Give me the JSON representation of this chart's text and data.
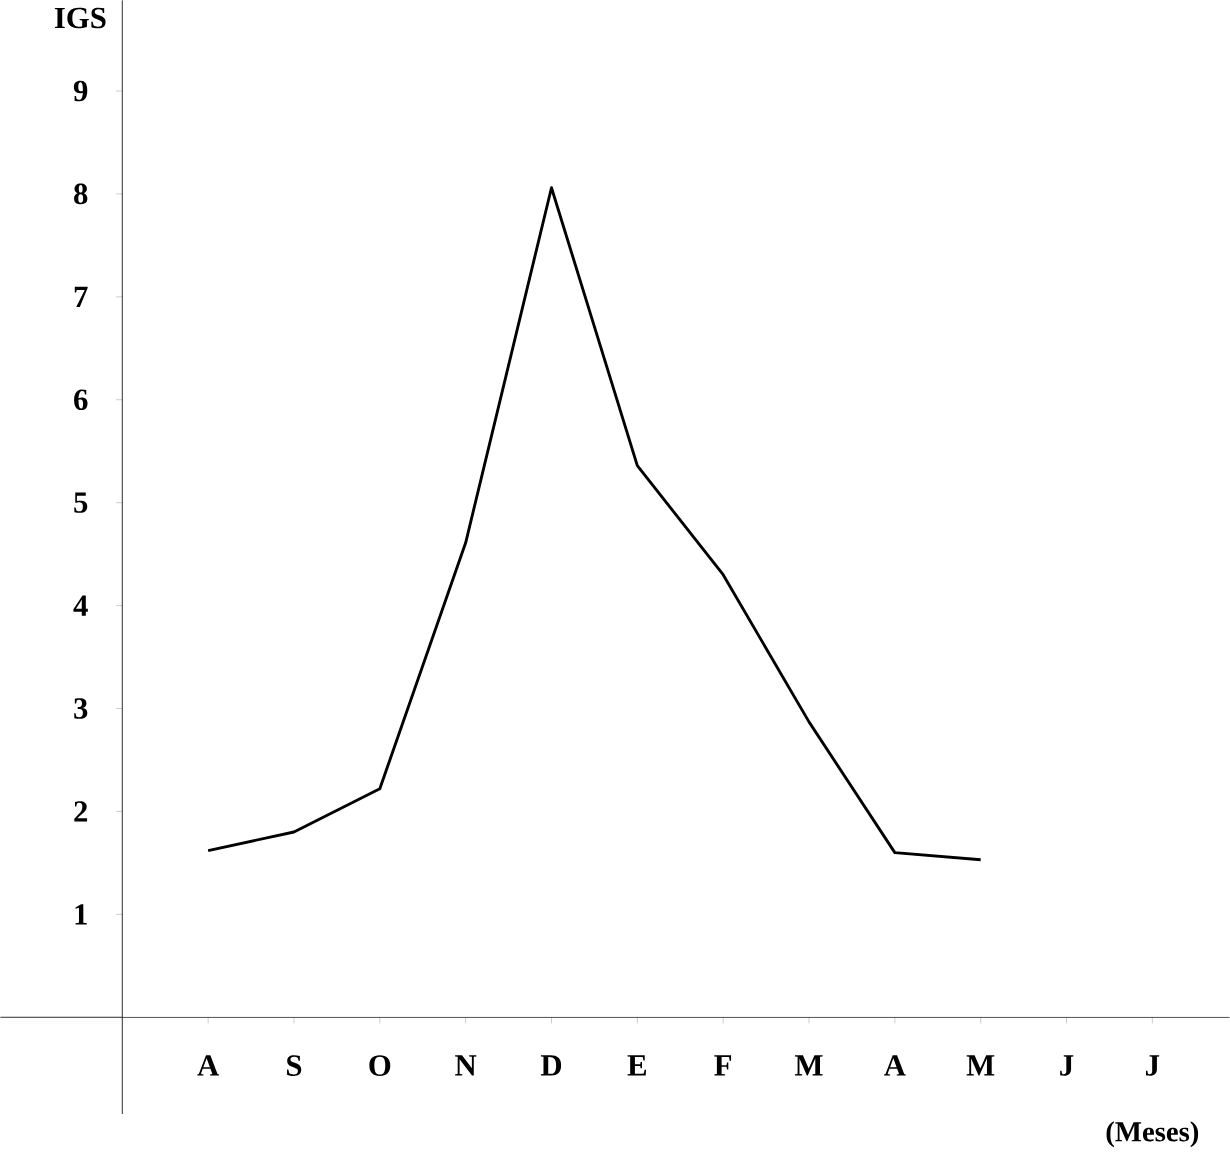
{
  "chart_data": {
    "type": "line",
    "xlabel": "(Meses)",
    "ylabel": "IGS",
    "categories": [
      "A",
      "S",
      "O",
      "N",
      "D",
      "E",
      "F",
      "M",
      "A",
      "M",
      "J",
      "J"
    ],
    "values": [
      1.62,
      1.8,
      2.22,
      4.61,
      8.06,
      5.36,
      4.3,
      2.87,
      1.6,
      1.53,
      null,
      null
    ],
    "color": "#000000",
    "ylim": [
      -0.94,
      9.88
    ],
    "yticks": [
      1,
      2,
      3,
      4,
      5,
      6,
      7,
      8,
      9
    ],
    "marker": "none",
    "line_style": "solid"
  }
}
